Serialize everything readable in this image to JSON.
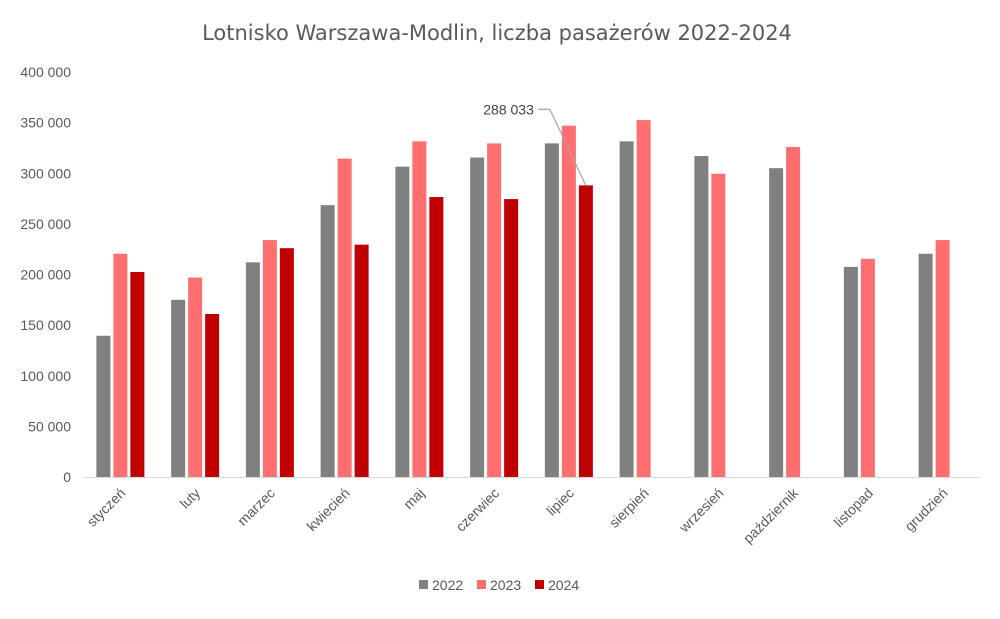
{
  "chart_data": {
    "type": "bar",
    "title": "Lotnisko Warszawa-Modlin, liczba pasażerów 2022-2024",
    "xlabel": "",
    "ylabel": "",
    "ylim": [
      0,
      400000
    ],
    "yticks": [
      "0",
      "50 000",
      "100 000",
      "150 000",
      "200 000",
      "250 000",
      "300 000",
      "350 000",
      "400 000"
    ],
    "grid": false,
    "legend_position": "bottom",
    "categories": [
      "styczeń",
      "luty",
      "marzec",
      "kwiecień",
      "maj",
      "czerwiec",
      "lipiec",
      "sierpień",
      "wrzesień",
      "październik",
      "listopad",
      "grudzień"
    ],
    "series": [
      {
        "name": "2022",
        "color": "#808080",
        "values": [
          139500,
          175000,
          212000,
          268500,
          306500,
          315500,
          329500,
          331500,
          317000,
          305000,
          207500,
          220500
        ]
      },
      {
        "name": "2023",
        "color": "#ff6f6f",
        "values": [
          220500,
          197000,
          234000,
          314500,
          331500,
          329500,
          347000,
          352500,
          299500,
          326000,
          215500,
          234000
        ]
      },
      {
        "name": "2024",
        "color": "#c00000",
        "values": [
          202500,
          161000,
          226000,
          229500,
          276500,
          274500,
          288033,
          null,
          null,
          null,
          null,
          null
        ]
      }
    ],
    "annotations": [
      {
        "text": "288 033",
        "series": "2024",
        "category": "lipiec"
      }
    ]
  }
}
